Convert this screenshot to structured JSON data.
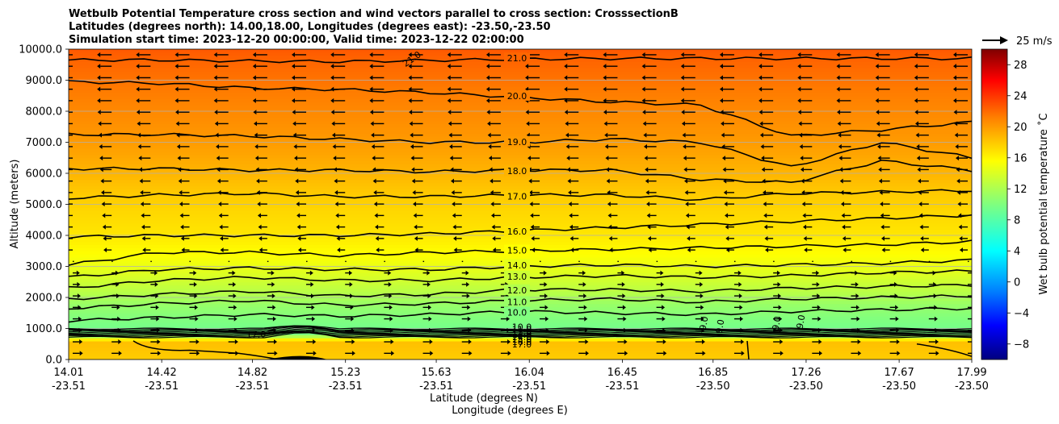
{
  "chart_data": {
    "type": "contour",
    "title_lines": [
      "Wetbulb Potential Temperature cross section and wind vectors parallel to cross section: CrosssectionB",
      "Latitudes (degrees north): 14.00,18.00, Longitudes (degrees east): -23.50,-23.50",
      "Simulation start time: 2023-12-20 00:00:00, Valid time: 2023-12-22 02:00:00"
    ],
    "xlabel": "Latitude (degrees N)",
    "xlabel2": "Longitude (degrees E)",
    "ylabel": "Altitude (meters)",
    "xlim": [
      14.01,
      17.99
    ],
    "ylim": [
      0,
      10000
    ],
    "x_ticks": [
      {
        "lat": "14.01",
        "lon": "-23.51",
        "v": 14.01
      },
      {
        "lat": "14.42",
        "lon": "-23.51",
        "v": 14.42
      },
      {
        "lat": "14.82",
        "lon": "-23.51",
        "v": 14.82
      },
      {
        "lat": "15.23",
        "lon": "-23.51",
        "v": 15.23
      },
      {
        "lat": "15.63",
        "lon": "-23.51",
        "v": 15.63
      },
      {
        "lat": "16.04",
        "lon": "-23.51",
        "v": 16.04
      },
      {
        "lat": "16.45",
        "lon": "-23.51",
        "v": 16.45
      },
      {
        "lat": "16.85",
        "lon": "-23.50",
        "v": 16.85
      },
      {
        "lat": "17.26",
        "lon": "-23.50",
        "v": 17.26
      },
      {
        "lat": "17.67",
        "lon": "-23.50",
        "v": 17.67
      },
      {
        "lat": "17.99",
        "lon": "-23.50",
        "v": 17.99
      }
    ],
    "y_ticks": [
      {
        "label": "0.0",
        "v": 0
      },
      {
        "label": "1000.0",
        "v": 1000
      },
      {
        "label": "2000.0",
        "v": 2000
      },
      {
        "label": "3000.0",
        "v": 3000
      },
      {
        "label": "4000.0",
        "v": 4000
      },
      {
        "label": "5000.0",
        "v": 5000
      },
      {
        "label": "6000.0",
        "v": 6000
      },
      {
        "label": "7000.0",
        "v": 7000
      },
      {
        "label": "8000.0",
        "v": 8000
      },
      {
        "label": "9000.0",
        "v": 9000
      },
      {
        "label": "10000.0",
        "v": 10000
      }
    ],
    "grid": "horizontal",
    "colorbar": {
      "label": "Wet bulb potential temperature ˚C",
      "min": -10,
      "max": 30,
      "colormap": "jet",
      "ticks": [
        {
          "label": "−8",
          "v": -8
        },
        {
          "label": "−4",
          "v": -4
        },
        {
          "label": "0",
          "v": 0
        },
        {
          "label": "4",
          "v": 4
        },
        {
          "label": "8",
          "v": 8
        },
        {
          "label": "12",
          "v": 12
        },
        {
          "label": "16",
          "v": 16
        },
        {
          "label": "20",
          "v": 20
        },
        {
          "label": "24",
          "v": 24
        },
        {
          "label": "28",
          "v": 28
        }
      ]
    },
    "contours": [
      {
        "label": "21.0",
        "v": 21,
        "alt": [
          9650,
          9650,
          9620,
          9600,
          9640,
          9680,
          9700,
          9700,
          9700,
          9700,
          9700
        ]
      },
      {
        "label": "20.0",
        "v": 20,
        "alt": [
          8950,
          8900,
          8750,
          8700,
          8600,
          8450,
          8300,
          8200,
          7200,
          7400,
          7650
        ]
      },
      {
        "label": "19.0",
        "v": 19,
        "alt": [
          7250,
          7250,
          7200,
          7100,
          7000,
          7000,
          7100,
          7000,
          6200,
          7000,
          6500
        ]
      },
      {
        "label": "18.0",
        "v": 18,
        "alt": [
          6150,
          6150,
          6100,
          6100,
          6050,
          6100,
          6100,
          5800,
          5700,
          6400,
          6100
        ]
      },
      {
        "label": "17.0",
        "v": 17,
        "alt": [
          5200,
          5300,
          5350,
          5250,
          5250,
          5300,
          5300,
          5150,
          5350,
          5400,
          5450
        ]
      },
      {
        "label": "16.0",
        "v": 16,
        "alt": [
          3950,
          4000,
          4000,
          4000,
          4050,
          4150,
          4250,
          4350,
          4450,
          4550,
          4650
        ]
      },
      {
        "label": "15.0",
        "v": 15,
        "alt": [
          3050,
          3450,
          3450,
          3350,
          3450,
          3500,
          3550,
          3600,
          3650,
          3700,
          3800
        ]
      },
      {
        "label": "14.0",
        "v": 14,
        "alt": [
          2650,
          2900,
          2950,
          2900,
          2900,
          3000,
          3050,
          3000,
          3050,
          3100,
          3200
        ]
      },
      {
        "label": "13.0",
        "v": 13,
        "alt": [
          2300,
          2550,
          2650,
          2550,
          2550,
          2650,
          2700,
          2650,
          2700,
          2800,
          2850
        ]
      },
      {
        "label": "12.0",
        "v": 12,
        "alt": [
          1950,
          2100,
          2200,
          2050,
          2100,
          2250,
          2250,
          2200,
          2300,
          2350,
          2400
        ]
      },
      {
        "label": "11.0",
        "v": 11,
        "alt": [
          1650,
          1800,
          1900,
          1750,
          1800,
          1900,
          1950,
          1850,
          1950,
          2000,
          2050
        ]
      },
      {
        "label": "10.0",
        "v": 10,
        "alt": [
          1250,
          1350,
          1450,
          1400,
          1450,
          1550,
          1500,
          1450,
          1550,
          1600,
          1650
        ]
      }
    ],
    "inversion_contour_labels": [
      "10.0",
      "11.0",
      "12.0",
      "13.0",
      "14.0",
      "15.0",
      "16.0",
      "17.0"
    ],
    "extra_contour_labels": [
      "9.0",
      "9.0",
      "9.0",
      "9.0",
      "17.0"
    ],
    "wind_key": {
      "label": "25 m/s",
      "v": 25
    },
    "wind_direction_note": "westward (arrows point left) above ~3500 m, eastward below ~3000 m"
  }
}
